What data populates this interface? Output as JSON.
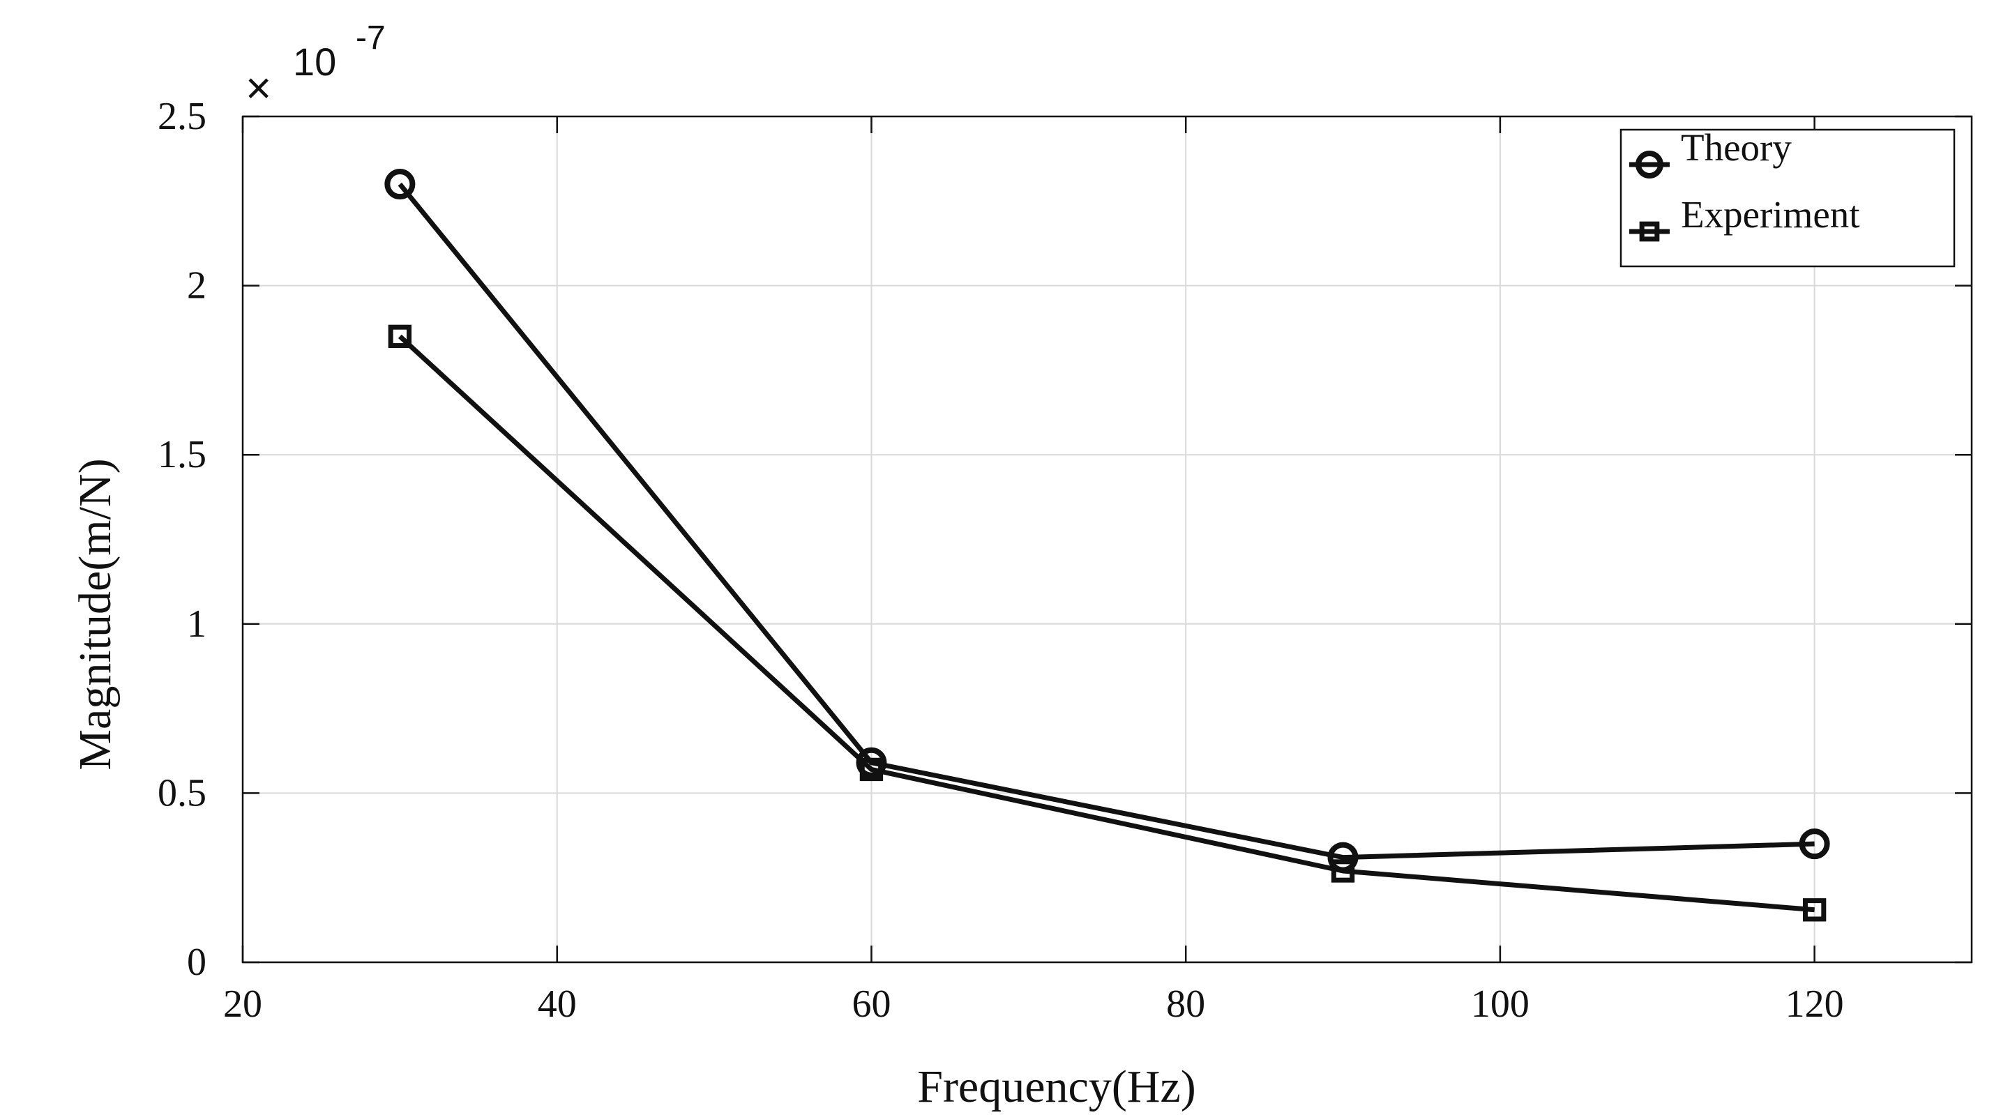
{
  "chart_data": {
    "type": "line",
    "title": "",
    "xlabel": "Frequency(Hz)",
    "ylabel": "Magnitude(m/N)",
    "xlim": [
      20,
      130
    ],
    "ylim": [
      0,
      2.5
    ],
    "xticks": [
      20,
      40,
      60,
      80,
      100,
      120
    ],
    "yticks": [
      0,
      0.5,
      1,
      1.5,
      2,
      2.5
    ],
    "xtick_labels": [
      "20",
      "40",
      "60",
      "80",
      "100",
      "120"
    ],
    "ytick_labels": [
      "0",
      "0.5",
      "1",
      "1.5",
      "2",
      "2.5"
    ],
    "y_multiplier": {
      "times": "×",
      "base": "10",
      "exponent": "-7"
    },
    "grid": true,
    "legend_position": "top-right",
    "series": [
      {
        "name": "Theory",
        "marker": "circle",
        "color": "#111111",
        "x": [
          30,
          60,
          90,
          120
        ],
        "y": [
          2.3,
          0.59,
          0.31,
          0.35
        ]
      },
      {
        "name": "Experiment",
        "marker": "square",
        "color": "#111111",
        "x": [
          30,
          60,
          90,
          120
        ],
        "y": [
          1.85,
          0.57,
          0.27,
          0.155
        ]
      }
    ]
  }
}
